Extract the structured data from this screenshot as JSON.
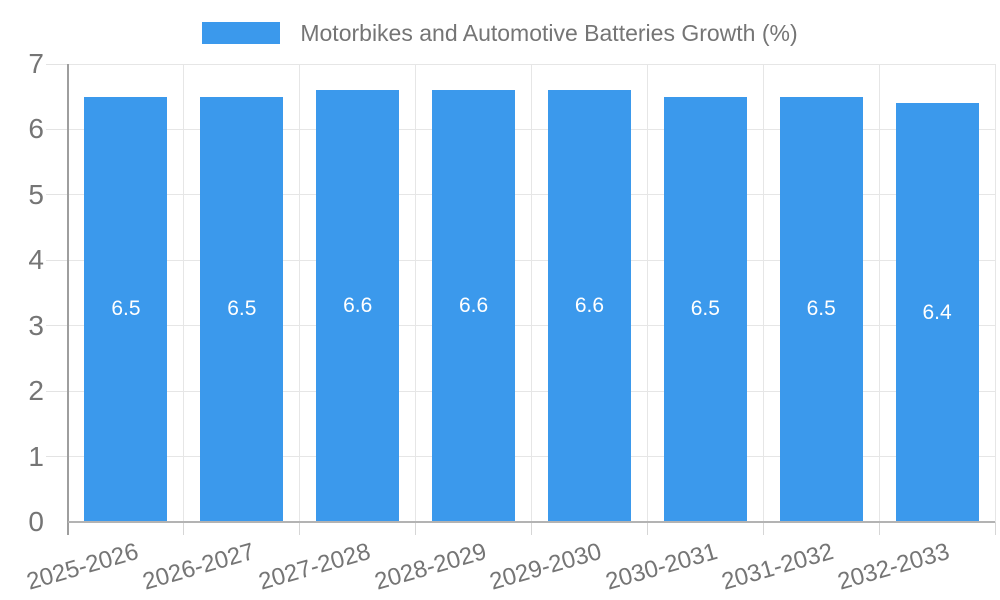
{
  "legend": {
    "label": "Motorbikes and Automotive Batteries Growth (%)"
  },
  "colors": {
    "bar": "#3B99EC",
    "grid": "#e6e6e6",
    "axis_line": "#9e9e9e",
    "baseline": "#b3b3b3",
    "tick_text": "#757575",
    "bar_label_text": "#ffffff"
  },
  "chart_data": {
    "type": "bar",
    "title": "Motorbikes and Automotive Batteries Growth (%)",
    "categories": [
      "2025-2026",
      "2026-2027",
      "2027-2028",
      "2028-2029",
      "2029-2030",
      "2030-2031",
      "2031-2032",
      "2032-2033"
    ],
    "values": [
      6.5,
      6.5,
      6.6,
      6.6,
      6.6,
      6.5,
      6.5,
      6.4
    ],
    "bar_labels": [
      "6.5",
      "6.5",
      "6.6",
      "6.6",
      "6.6",
      "6.5",
      "6.5",
      "6.4"
    ],
    "bar_label_position": "middle",
    "xlabel": "",
    "ylabel": "",
    "ylim": [
      0,
      7
    ],
    "yticks": [
      0,
      1,
      2,
      3,
      4,
      5,
      6,
      7
    ],
    "grid": true,
    "legend_position": "top-center"
  }
}
